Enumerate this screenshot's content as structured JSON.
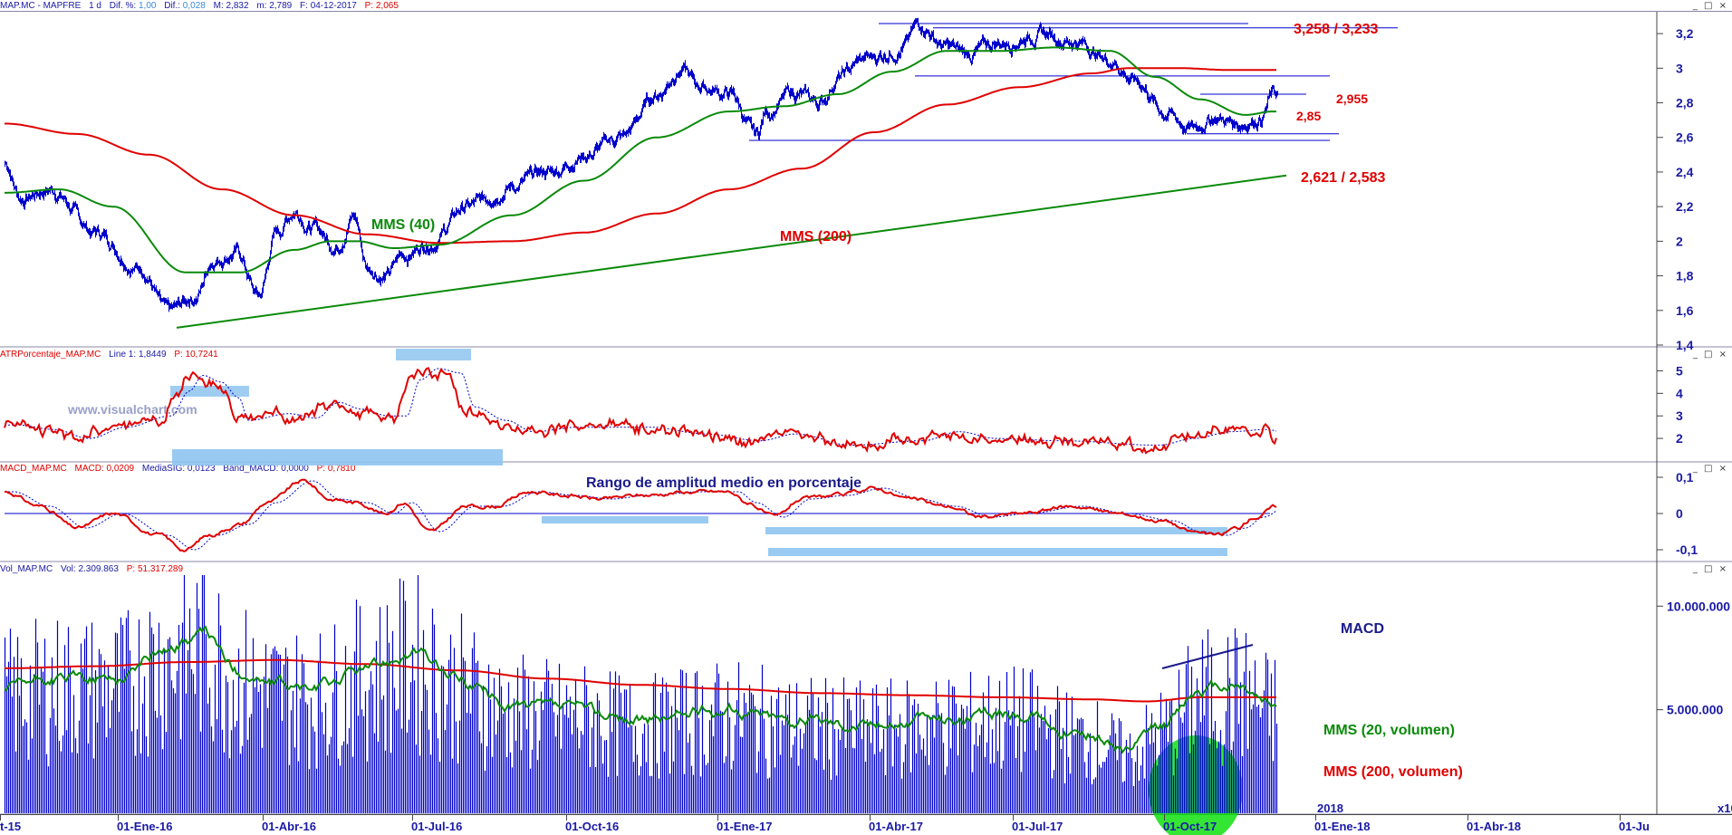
{
  "colors": {
    "blue": "#0000cc",
    "red": "#e00000",
    "green": "#0a8a0a",
    "highlight": "#8ec4f0",
    "axis": "#1a1aa6",
    "bubble": "#10e010"
  },
  "price_header": {
    "symbol": "MAP.MC - MAPFRE",
    "interval": "1 d",
    "dif_pct_label": "Dif. %:",
    "dif_pct": "1,00",
    "dif_label": "Dif.:",
    "dif": "0,028",
    "max_label": "M:",
    "max": "2,832",
    "min_label": "m:",
    "min": "2,789",
    "date_label": "F:",
    "date": "04-12-2017",
    "p_label": "P:",
    "p": "2,065"
  },
  "atr_header": {
    "name": "ATRPorcentaje_MAP.MC",
    "line_label": "Line 1:",
    "line": "1,8449",
    "p_label": "P:",
    "p": "10,7241"
  },
  "macd_header": {
    "name": "MACD_MAP.MC",
    "macd_label": "MACD:",
    "macd": "0,0209",
    "signal_label": "MediaSIG:",
    "signal": "0,0123",
    "band_label": "Band_MACD:",
    "band": "0,0000",
    "p_label": "P:",
    "p": "0,7810"
  },
  "vol_header": {
    "name": "Vol_MAP.MC",
    "vol_label": "Vol:",
    "vol": "2.309.863",
    "p_label": "P:",
    "p": "51.317.289"
  },
  "window_controls": "_ □ ×",
  "watermark": "www.visualchart.com",
  "x_axis": {
    "ticks": [
      "t-15",
      "01-Ene-16",
      "01-Abr-16",
      "01-Jul-16",
      "01-Oct-16",
      "01-Ene-17",
      "01-Abr-17",
      "01-Jul-17",
      "01-Oct-17",
      "01-Ene-18",
      "01-Abr-18",
      "01-Ju"
    ],
    "year_label": "2018",
    "corner": "x10"
  },
  "chart_data": [
    {
      "type": "candlestick",
      "name": "MAP.MC - MAPFRE",
      "ylim": [
        1.4,
        3.3
      ],
      "yticks": [
        "1,4",
        "1,6",
        "1,8",
        "2",
        "2,2",
        "2,4",
        "2,6",
        "2,8",
        "3",
        "3,2"
      ],
      "price_anchors": [
        [
          0,
          2.45
        ],
        [
          18,
          2.25
        ],
        [
          50,
          2.3
        ],
        [
          100,
          2.05
        ],
        [
          150,
          1.85
        ],
        [
          180,
          1.58
        ],
        [
          210,
          1.68
        ],
        [
          230,
          1.9
        ],
        [
          255,
          1.94
        ],
        [
          280,
          1.68
        ],
        [
          300,
          2.05
        ],
        [
          320,
          2.18
        ],
        [
          340,
          2.08
        ],
        [
          365,
          1.98
        ],
        [
          385,
          2.15
        ],
        [
          400,
          1.85
        ],
        [
          420,
          1.8
        ],
        [
          440,
          1.92
        ],
        [
          470,
          2.0
        ],
        [
          510,
          2.2
        ],
        [
          560,
          2.32
        ],
        [
          600,
          2.4
        ],
        [
          640,
          2.5
        ],
        [
          680,
          2.6
        ],
        [
          720,
          2.85
        ],
        [
          745,
          3.0
        ],
        [
          765,
          2.9
        ],
        [
          800,
          2.85
        ],
        [
          830,
          2.6
        ],
        [
          840,
          2.75
        ],
        [
          870,
          2.85
        ],
        [
          900,
          2.8
        ],
        [
          920,
          2.95
        ],
        [
          950,
          3.05
        ],
        [
          990,
          3.12
        ],
        [
          1010,
          3.25
        ],
        [
          1040,
          3.12
        ],
        [
          1060,
          3.08
        ],
        [
          1100,
          3.15
        ],
        [
          1140,
          3.2
        ],
        [
          1180,
          3.16
        ],
        [
          1220,
          3.05
        ],
        [
          1250,
          2.92
        ],
        [
          1280,
          2.75
        ],
        [
          1310,
          2.65
        ],
        [
          1335,
          2.72
        ],
        [
          1360,
          2.68
        ],
        [
          1385,
          2.72
        ],
        [
          1400,
          2.85
        ]
      ],
      "sma40": {
        "label": "MMS (40)",
        "anchors": [
          [
            0,
            2.28
          ],
          [
            60,
            2.3
          ],
          [
            120,
            2.2
          ],
          [
            200,
            1.82
          ],
          [
            260,
            1.82
          ],
          [
            320,
            1.95
          ],
          [
            360,
            2.0
          ],
          [
            390,
            2.0
          ],
          [
            430,
            1.96
          ],
          [
            480,
            1.98
          ],
          [
            560,
            2.15
          ],
          [
            640,
            2.35
          ],
          [
            720,
            2.6
          ],
          [
            800,
            2.75
          ],
          [
            860,
            2.78
          ],
          [
            920,
            2.85
          ],
          [
            980,
            2.98
          ],
          [
            1040,
            3.1
          ],
          [
            1100,
            3.1
          ],
          [
            1160,
            3.12
          ],
          [
            1220,
            3.1
          ],
          [
            1270,
            2.95
          ],
          [
            1320,
            2.82
          ],
          [
            1370,
            2.73
          ],
          [
            1400,
            2.75
          ]
        ]
      },
      "sma200": {
        "label": "MMS (200)",
        "anchors": [
          [
            0,
            2.68
          ],
          [
            80,
            2.62
          ],
          [
            160,
            2.5
          ],
          [
            240,
            2.3
          ],
          [
            320,
            2.15
          ],
          [
            400,
            2.04
          ],
          [
            480,
            1.99
          ],
          [
            560,
            2.0
          ],
          [
            640,
            2.05
          ],
          [
            720,
            2.16
          ],
          [
            800,
            2.3
          ],
          [
            880,
            2.42
          ],
          [
            960,
            2.63
          ],
          [
            1040,
            2.79
          ],
          [
            1120,
            2.89
          ],
          [
            1200,
            2.97
          ],
          [
            1240,
            3.0
          ],
          [
            1300,
            3.0
          ],
          [
            1350,
            2.99
          ],
          [
            1400,
            2.99
          ]
        ]
      },
      "trendline": [
        [
          195,
          1.5
        ],
        [
          1420,
          2.38
        ]
      ],
      "levels": [
        {
          "label": "3,258 / 3,233",
          "values": [
            3.258,
            3.233
          ]
        },
        {
          "label": "2,955",
          "value": 2.955
        },
        {
          "label": "2,85",
          "value": 2.85
        },
        {
          "label": "2,621 / 2,583",
          "values": [
            2.621,
            2.583
          ]
        }
      ]
    },
    {
      "type": "line",
      "name": "ATRPorcentaje_MAP.MC",
      "ylim": [
        1,
        5.5
      ],
      "yticks": [
        "2",
        "3",
        "4",
        "5"
      ],
      "annotation": "Rango de amplitud medio en porcentaje",
      "anchors": [
        [
          0,
          2.6
        ],
        [
          40,
          2.4
        ],
        [
          80,
          2.0
        ],
        [
          120,
          2.5
        ],
        [
          170,
          3.0
        ],
        [
          190,
          4.1
        ],
        [
          205,
          4.8
        ],
        [
          225,
          4.5
        ],
        [
          245,
          3.8
        ],
        [
          255,
          2.8
        ],
        [
          300,
          3.1
        ],
        [
          330,
          2.9
        ],
        [
          355,
          3.6
        ],
        [
          380,
          3.3
        ],
        [
          410,
          3.0
        ],
        [
          430,
          3.0
        ],
        [
          445,
          4.6
        ],
        [
          465,
          5.1
        ],
        [
          490,
          4.9
        ],
        [
          505,
          3.4
        ],
        [
          540,
          2.8
        ],
        [
          570,
          2.3
        ],
        [
          620,
          2.5
        ],
        [
          700,
          2.5
        ],
        [
          760,
          2.2
        ],
        [
          820,
          1.9
        ],
        [
          860,
          2.2
        ],
        [
          920,
          1.7
        ],
        [
          1000,
          1.9
        ],
        [
          1040,
          2.3
        ],
        [
          1080,
          2.0
        ],
        [
          1150,
          1.9
        ],
        [
          1260,
          1.7
        ],
        [
          1300,
          2.0
        ],
        [
          1340,
          2.3
        ],
        [
          1380,
          2.4
        ],
        [
          1395,
          2.3
        ],
        [
          1402,
          1.9
        ],
        [
          1405,
          1.8
        ]
      ]
    },
    {
      "type": "line",
      "name": "MACD_MAP.MC",
      "ylim": [
        -0.13,
        0.11
      ],
      "yticks": [
        "0,1",
        "0",
        "-0,1"
      ],
      "annotation": "MACD",
      "anchors": [
        [
          0,
          0.06
        ],
        [
          40,
          0.02
        ],
        [
          80,
          -0.04
        ],
        [
          120,
          0.0
        ],
        [
          170,
          -0.06
        ],
        [
          200,
          -0.1
        ],
        [
          225,
          -0.06
        ],
        [
          260,
          -0.03
        ],
        [
          290,
          0.03
        ],
        [
          330,
          0.09
        ],
        [
          360,
          0.04
        ],
        [
          390,
          0.03
        ],
        [
          420,
          0.0
        ],
        [
          440,
          0.03
        ],
        [
          470,
          -0.05
        ],
        [
          510,
          0.02
        ],
        [
          540,
          0.02
        ],
        [
          580,
          0.06
        ],
        [
          620,
          0.05
        ],
        [
          660,
          0.04
        ],
        [
          700,
          0.05
        ],
        [
          760,
          0.06
        ],
        [
          800,
          0.06
        ],
        [
          820,
          0.03
        ],
        [
          850,
          -0.01
        ],
        [
          880,
          0.04
        ],
        [
          920,
          0.05
        ],
        [
          960,
          0.07
        ],
        [
          1000,
          0.04
        ],
        [
          1040,
          0.02
        ],
        [
          1080,
          -0.01
        ],
        [
          1120,
          0.0
        ],
        [
          1180,
          0.02
        ],
        [
          1230,
          0.0
        ],
        [
          1280,
          -0.02
        ],
        [
          1310,
          -0.05
        ],
        [
          1340,
          -0.06
        ],
        [
          1360,
          -0.04
        ],
        [
          1380,
          -0.01
        ],
        [
          1405,
          0.02
        ]
      ]
    },
    {
      "type": "bar",
      "name": "Vol_MAP.MC",
      "ylim": [
        0,
        11500000
      ],
      "yticks": [
        "10.000.000",
        "5.000.000"
      ],
      "sma20": {
        "label": "MMS (20, volumen)",
        "anchors": [
          [
            0,
            6.0
          ],
          [
            60,
            6.5
          ],
          [
            120,
            6.5
          ],
          [
            180,
            8.0
          ],
          [
            220,
            8.6
          ],
          [
            260,
            6.8
          ],
          [
            300,
            6.2
          ],
          [
            340,
            6.0
          ],
          [
            400,
            7.0
          ],
          [
            450,
            7.8
          ],
          [
            500,
            6.5
          ],
          [
            560,
            5.2
          ],
          [
            620,
            5.0
          ],
          [
            700,
            4.5
          ],
          [
            800,
            5.0
          ],
          [
            880,
            4.5
          ],
          [
            960,
            4.3
          ],
          [
            1040,
            4.6
          ],
          [
            1120,
            4.8
          ],
          [
            1200,
            3.8
          ],
          [
            1240,
            3.0
          ],
          [
            1280,
            4.2
          ],
          [
            1320,
            6.0
          ],
          [
            1360,
            6.2
          ],
          [
            1400,
            5.3
          ]
        ]
      },
      "sma200": {
        "label": "MMS (200, volumen)",
        "anchors": [
          [
            0,
            7.0
          ],
          [
            100,
            7.1
          ],
          [
            200,
            7.3
          ],
          [
            300,
            7.4
          ],
          [
            400,
            7.2
          ],
          [
            500,
            6.9
          ],
          [
            600,
            6.5
          ],
          [
            700,
            6.2
          ],
          [
            800,
            6.0
          ],
          [
            900,
            5.8
          ],
          [
            1000,
            5.7
          ],
          [
            1100,
            5.6
          ],
          [
            1200,
            5.5
          ],
          [
            1260,
            5.4
          ],
          [
            1320,
            5.6
          ],
          [
            1405,
            5.6
          ]
        ]
      }
    }
  ]
}
